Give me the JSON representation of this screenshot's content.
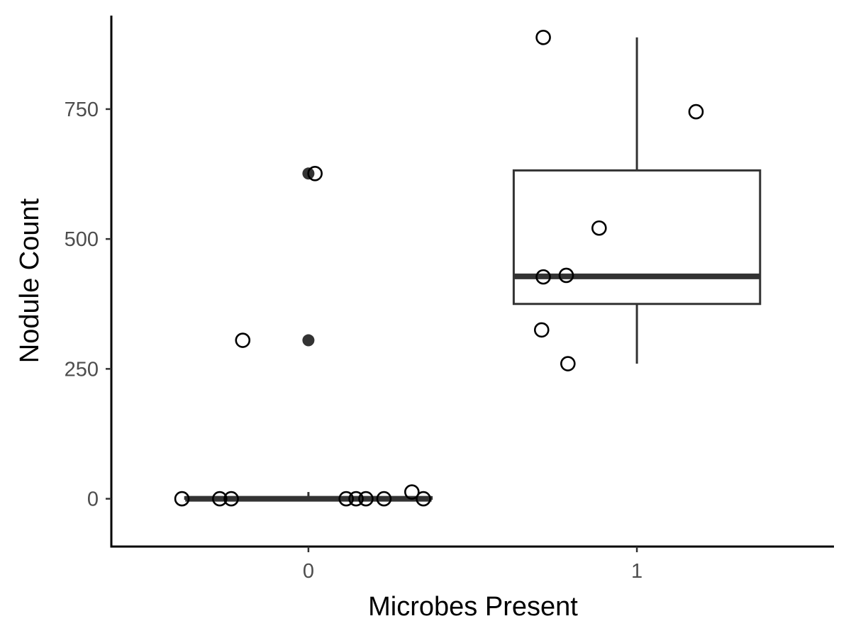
{
  "chart_data": {
    "type": "box",
    "xlabel": "Microbes Present",
    "ylabel": "Nodule Count",
    "categories": [
      "0",
      "1"
    ],
    "ylim": [
      -92,
      930
    ],
    "y_ticks": [
      0,
      250,
      500,
      750
    ],
    "y_tick_labels": [
      "0",
      "250",
      "500",
      "750"
    ],
    "grid": false,
    "colors": {
      "box_stroke": "#333333",
      "points": "#000000",
      "axis": "#000000",
      "tick_text": "#4d4d4d"
    },
    "boxes": [
      {
        "category": "0",
        "whisker_low": 0,
        "q1": 0,
        "median": 0,
        "q3": 3,
        "whisker_high": 13,
        "outliers": [
          626,
          305
        ]
      },
      {
        "category": "1",
        "whisker_low": 260,
        "q1": 375,
        "median": 428,
        "q3": 632,
        "whisker_high": 888,
        "outliers": []
      }
    ],
    "points": [
      {
        "x": -0.385,
        "y": 0
      },
      {
        "x": -0.27,
        "y": 0
      },
      {
        "x": -0.235,
        "y": 0
      },
      {
        "x": -0.2,
        "y": 305
      },
      {
        "x": 0.02,
        "y": 626
      },
      {
        "x": 0.115,
        "y": 0
      },
      {
        "x": 0.145,
        "y": 0
      },
      {
        "x": 0.175,
        "y": 0
      },
      {
        "x": 0.23,
        "y": 0
      },
      {
        "x": 0.315,
        "y": 13
      },
      {
        "x": 0.35,
        "y": 0
      },
      {
        "x": 0.715,
        "y": 888
      },
      {
        "x": 1.18,
        "y": 745
      },
      {
        "x": 0.885,
        "y": 521
      },
      {
        "x": 0.715,
        "y": 427
      },
      {
        "x": 0.785,
        "y": 430
      },
      {
        "x": 0.71,
        "y": 325
      },
      {
        "x": 0.79,
        "y": 260
      }
    ]
  }
}
